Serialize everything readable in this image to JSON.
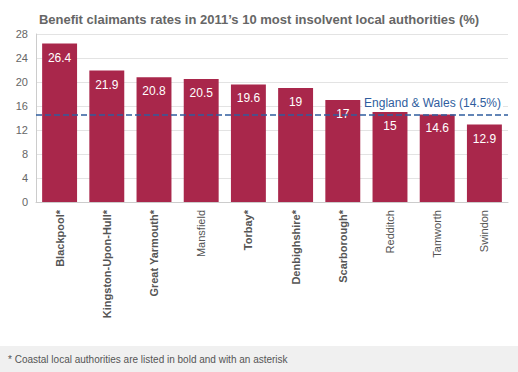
{
  "chart_data": {
    "type": "bar",
    "title": "Benefit claimants rates in 2011’s 10 most insolvent local authorities (%)",
    "categories": [
      "Blackpool*",
      "Kingston-Upon-Hull*",
      "Great Yarmouth*",
      "Mansfield",
      "Torbay*",
      "Denbighshire*",
      "Scarborough*",
      "Redditch",
      "Tamworth",
      "Swindon"
    ],
    "values": [
      26.4,
      21.9,
      20.8,
      20.5,
      19.6,
      19,
      17,
      15,
      14.6,
      12.9
    ],
    "color": "#a9274b",
    "ylim": [
      0,
      28
    ],
    "yticks": [
      0,
      4,
      8,
      12,
      16,
      20,
      24,
      28
    ],
    "grid": true,
    "data_labels": true,
    "annotations": [
      {
        "value": 14.5,
        "label": "England & Wales (14.5%)"
      }
    ],
    "footnote": "* Coastal local authorities are listed in bold and with an asterisk"
  }
}
